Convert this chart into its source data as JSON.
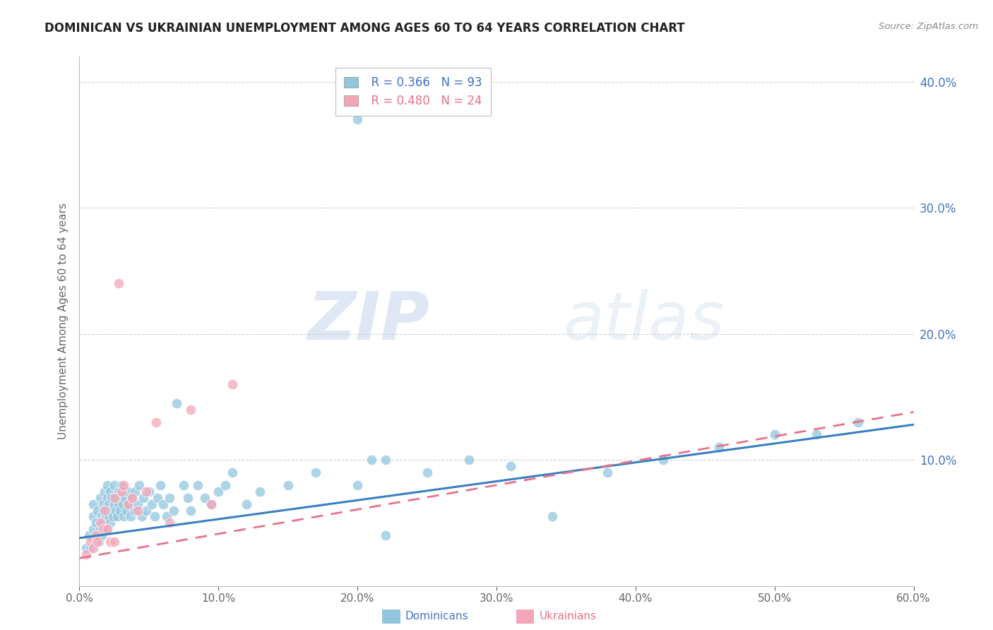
{
  "title": "DOMINICAN VS UKRAINIAN UNEMPLOYMENT AMONG AGES 60 TO 64 YEARS CORRELATION CHART",
  "source": "Source: ZipAtlas.com",
  "ylabel": "Unemployment Among Ages 60 to 64 years",
  "xlim": [
    0.0,
    0.6
  ],
  "ylim": [
    0.0,
    0.42
  ],
  "xticks": [
    0.0,
    0.1,
    0.2,
    0.3,
    0.4,
    0.5,
    0.6
  ],
  "yticks": [
    0.1,
    0.2,
    0.3,
    0.4
  ],
  "dominican_color": "#92C5DE",
  "ukrainian_color": "#F4A6B8",
  "dominican_line_color": "#3A7FC1",
  "ukrainian_line_color": "#E8728A",
  "dominican_R": 0.366,
  "dominican_N": 93,
  "ukrainian_R": 0.48,
  "ukrainian_N": 24,
  "watermark_zip": "ZIP",
  "watermark_atlas": "atlas",
  "dom_line_x0": 0.0,
  "dom_line_y0": 0.038,
  "dom_line_x1": 0.6,
  "dom_line_y1": 0.128,
  "ukr_line_x0": 0.0,
  "ukr_line_y0": 0.022,
  "ukr_line_x1": 0.6,
  "ukr_line_y1": 0.138,
  "dominican_x": [
    0.005,
    0.007,
    0.008,
    0.01,
    0.01,
    0.01,
    0.012,
    0.013,
    0.013,
    0.014,
    0.015,
    0.015,
    0.016,
    0.016,
    0.017,
    0.017,
    0.018,
    0.018,
    0.019,
    0.019,
    0.02,
    0.02,
    0.02,
    0.021,
    0.021,
    0.022,
    0.022,
    0.023,
    0.023,
    0.024,
    0.025,
    0.025,
    0.026,
    0.026,
    0.027,
    0.028,
    0.028,
    0.029,
    0.03,
    0.03,
    0.031,
    0.032,
    0.033,
    0.034,
    0.035,
    0.036,
    0.037,
    0.038,
    0.04,
    0.04,
    0.042,
    0.043,
    0.045,
    0.046,
    0.048,
    0.05,
    0.052,
    0.054,
    0.056,
    0.058,
    0.06,
    0.063,
    0.065,
    0.068,
    0.07,
    0.075,
    0.078,
    0.08,
    0.085,
    0.09,
    0.095,
    0.1,
    0.105,
    0.11,
    0.12,
    0.13,
    0.15,
    0.17,
    0.2,
    0.22,
    0.25,
    0.28,
    0.31,
    0.34,
    0.38,
    0.42,
    0.46,
    0.5,
    0.53,
    0.56,
    0.2,
    0.21,
    0.22
  ],
  "dominican_y": [
    0.03,
    0.04,
    0.03,
    0.045,
    0.055,
    0.065,
    0.05,
    0.04,
    0.06,
    0.035,
    0.045,
    0.07,
    0.055,
    0.04,
    0.065,
    0.05,
    0.06,
    0.075,
    0.055,
    0.045,
    0.06,
    0.07,
    0.08,
    0.055,
    0.065,
    0.05,
    0.075,
    0.06,
    0.07,
    0.055,
    0.065,
    0.08,
    0.06,
    0.07,
    0.055,
    0.065,
    0.075,
    0.06,
    0.07,
    0.08,
    0.065,
    0.055,
    0.07,
    0.06,
    0.075,
    0.065,
    0.055,
    0.07,
    0.06,
    0.075,
    0.065,
    0.08,
    0.055,
    0.07,
    0.06,
    0.075,
    0.065,
    0.055,
    0.07,
    0.08,
    0.065,
    0.055,
    0.07,
    0.06,
    0.145,
    0.08,
    0.07,
    0.06,
    0.08,
    0.07,
    0.065,
    0.075,
    0.08,
    0.09,
    0.065,
    0.075,
    0.08,
    0.09,
    0.08,
    0.1,
    0.09,
    0.1,
    0.095,
    0.055,
    0.09,
    0.1,
    0.11,
    0.12,
    0.12,
    0.13,
    0.37,
    0.1,
    0.04
  ],
  "ukrainian_x": [
    0.005,
    0.008,
    0.01,
    0.012,
    0.013,
    0.015,
    0.017,
    0.018,
    0.02,
    0.022,
    0.025,
    0.025,
    0.028,
    0.03,
    0.032,
    0.035,
    0.038,
    0.042,
    0.048,
    0.055,
    0.065,
    0.08,
    0.095,
    0.11
  ],
  "ukrainian_y": [
    0.025,
    0.035,
    0.03,
    0.04,
    0.035,
    0.05,
    0.045,
    0.06,
    0.045,
    0.035,
    0.035,
    0.07,
    0.24,
    0.075,
    0.08,
    0.065,
    0.07,
    0.06,
    0.075,
    0.13,
    0.05,
    0.14,
    0.065,
    0.16
  ]
}
